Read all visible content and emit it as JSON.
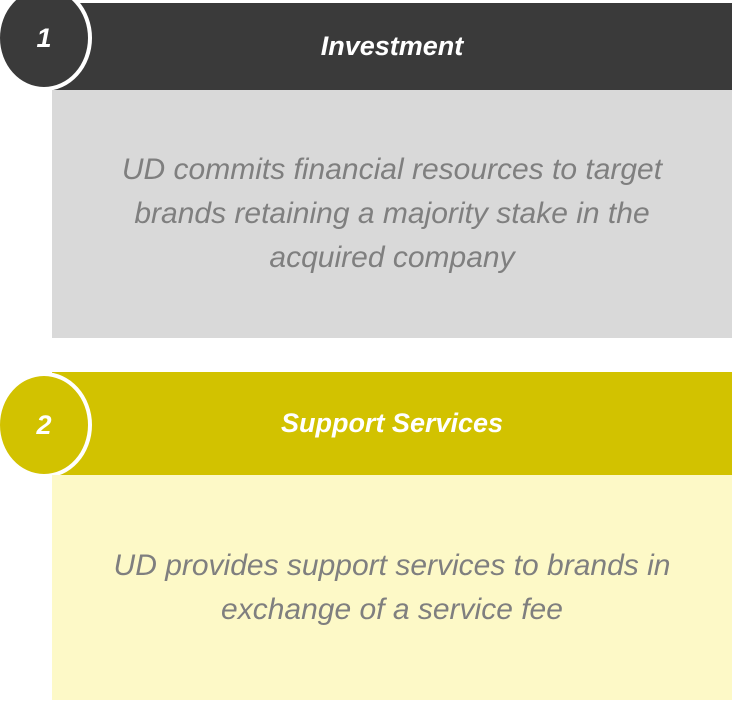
{
  "steps": [
    {
      "number": "1",
      "title": "Investment",
      "description": "UD commits financial resources to target brands retaining a majority stake in the acquired company"
    },
    {
      "number": "2",
      "title": "Support Services",
      "description": "UD provides support services to brands in exchange of a service fee"
    }
  ]
}
